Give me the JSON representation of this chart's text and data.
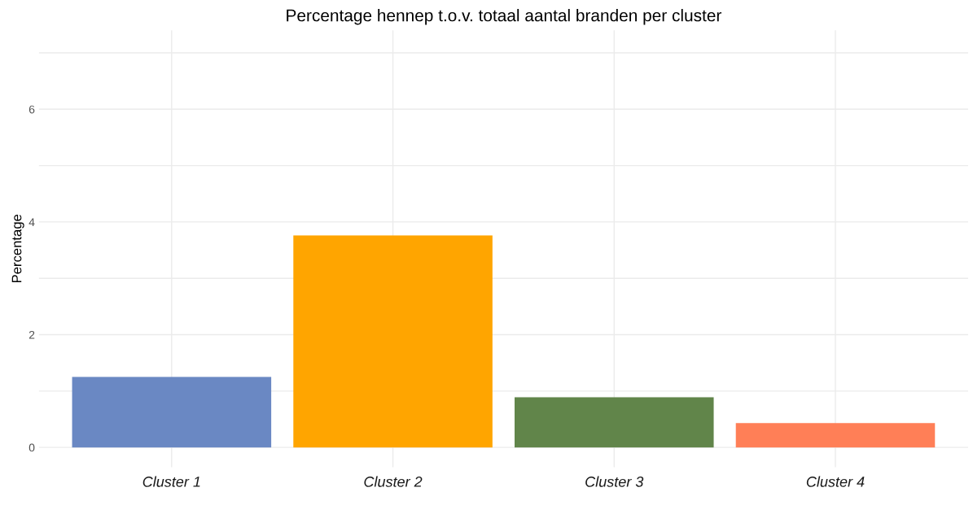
{
  "chart_data": {
    "type": "bar",
    "title": "Percentage hennep t.o.v. totaal aantal branden per cluster",
    "ylabel": "Percentage",
    "categories": [
      "Cluster 1",
      "Cluster 2",
      "Cluster 3",
      "Cluster 4"
    ],
    "values": [
      1.25,
      3.76,
      0.89,
      0.43
    ],
    "colors": [
      "#6a88c3",
      "#ffa500",
      "#61854a",
      "#ff7f57"
    ],
    "ylim": [
      -0.35,
      7.4
    ],
    "yticks": [
      0,
      {
        "value": 1,
        "label": null
      },
      2,
      {
        "value": 3,
        "label": null
      },
      4,
      {
        "value": 5,
        "label": null
      },
      6,
      {
        "value": 7,
        "label": null
      }
    ],
    "grid": true,
    "legend": false
  }
}
